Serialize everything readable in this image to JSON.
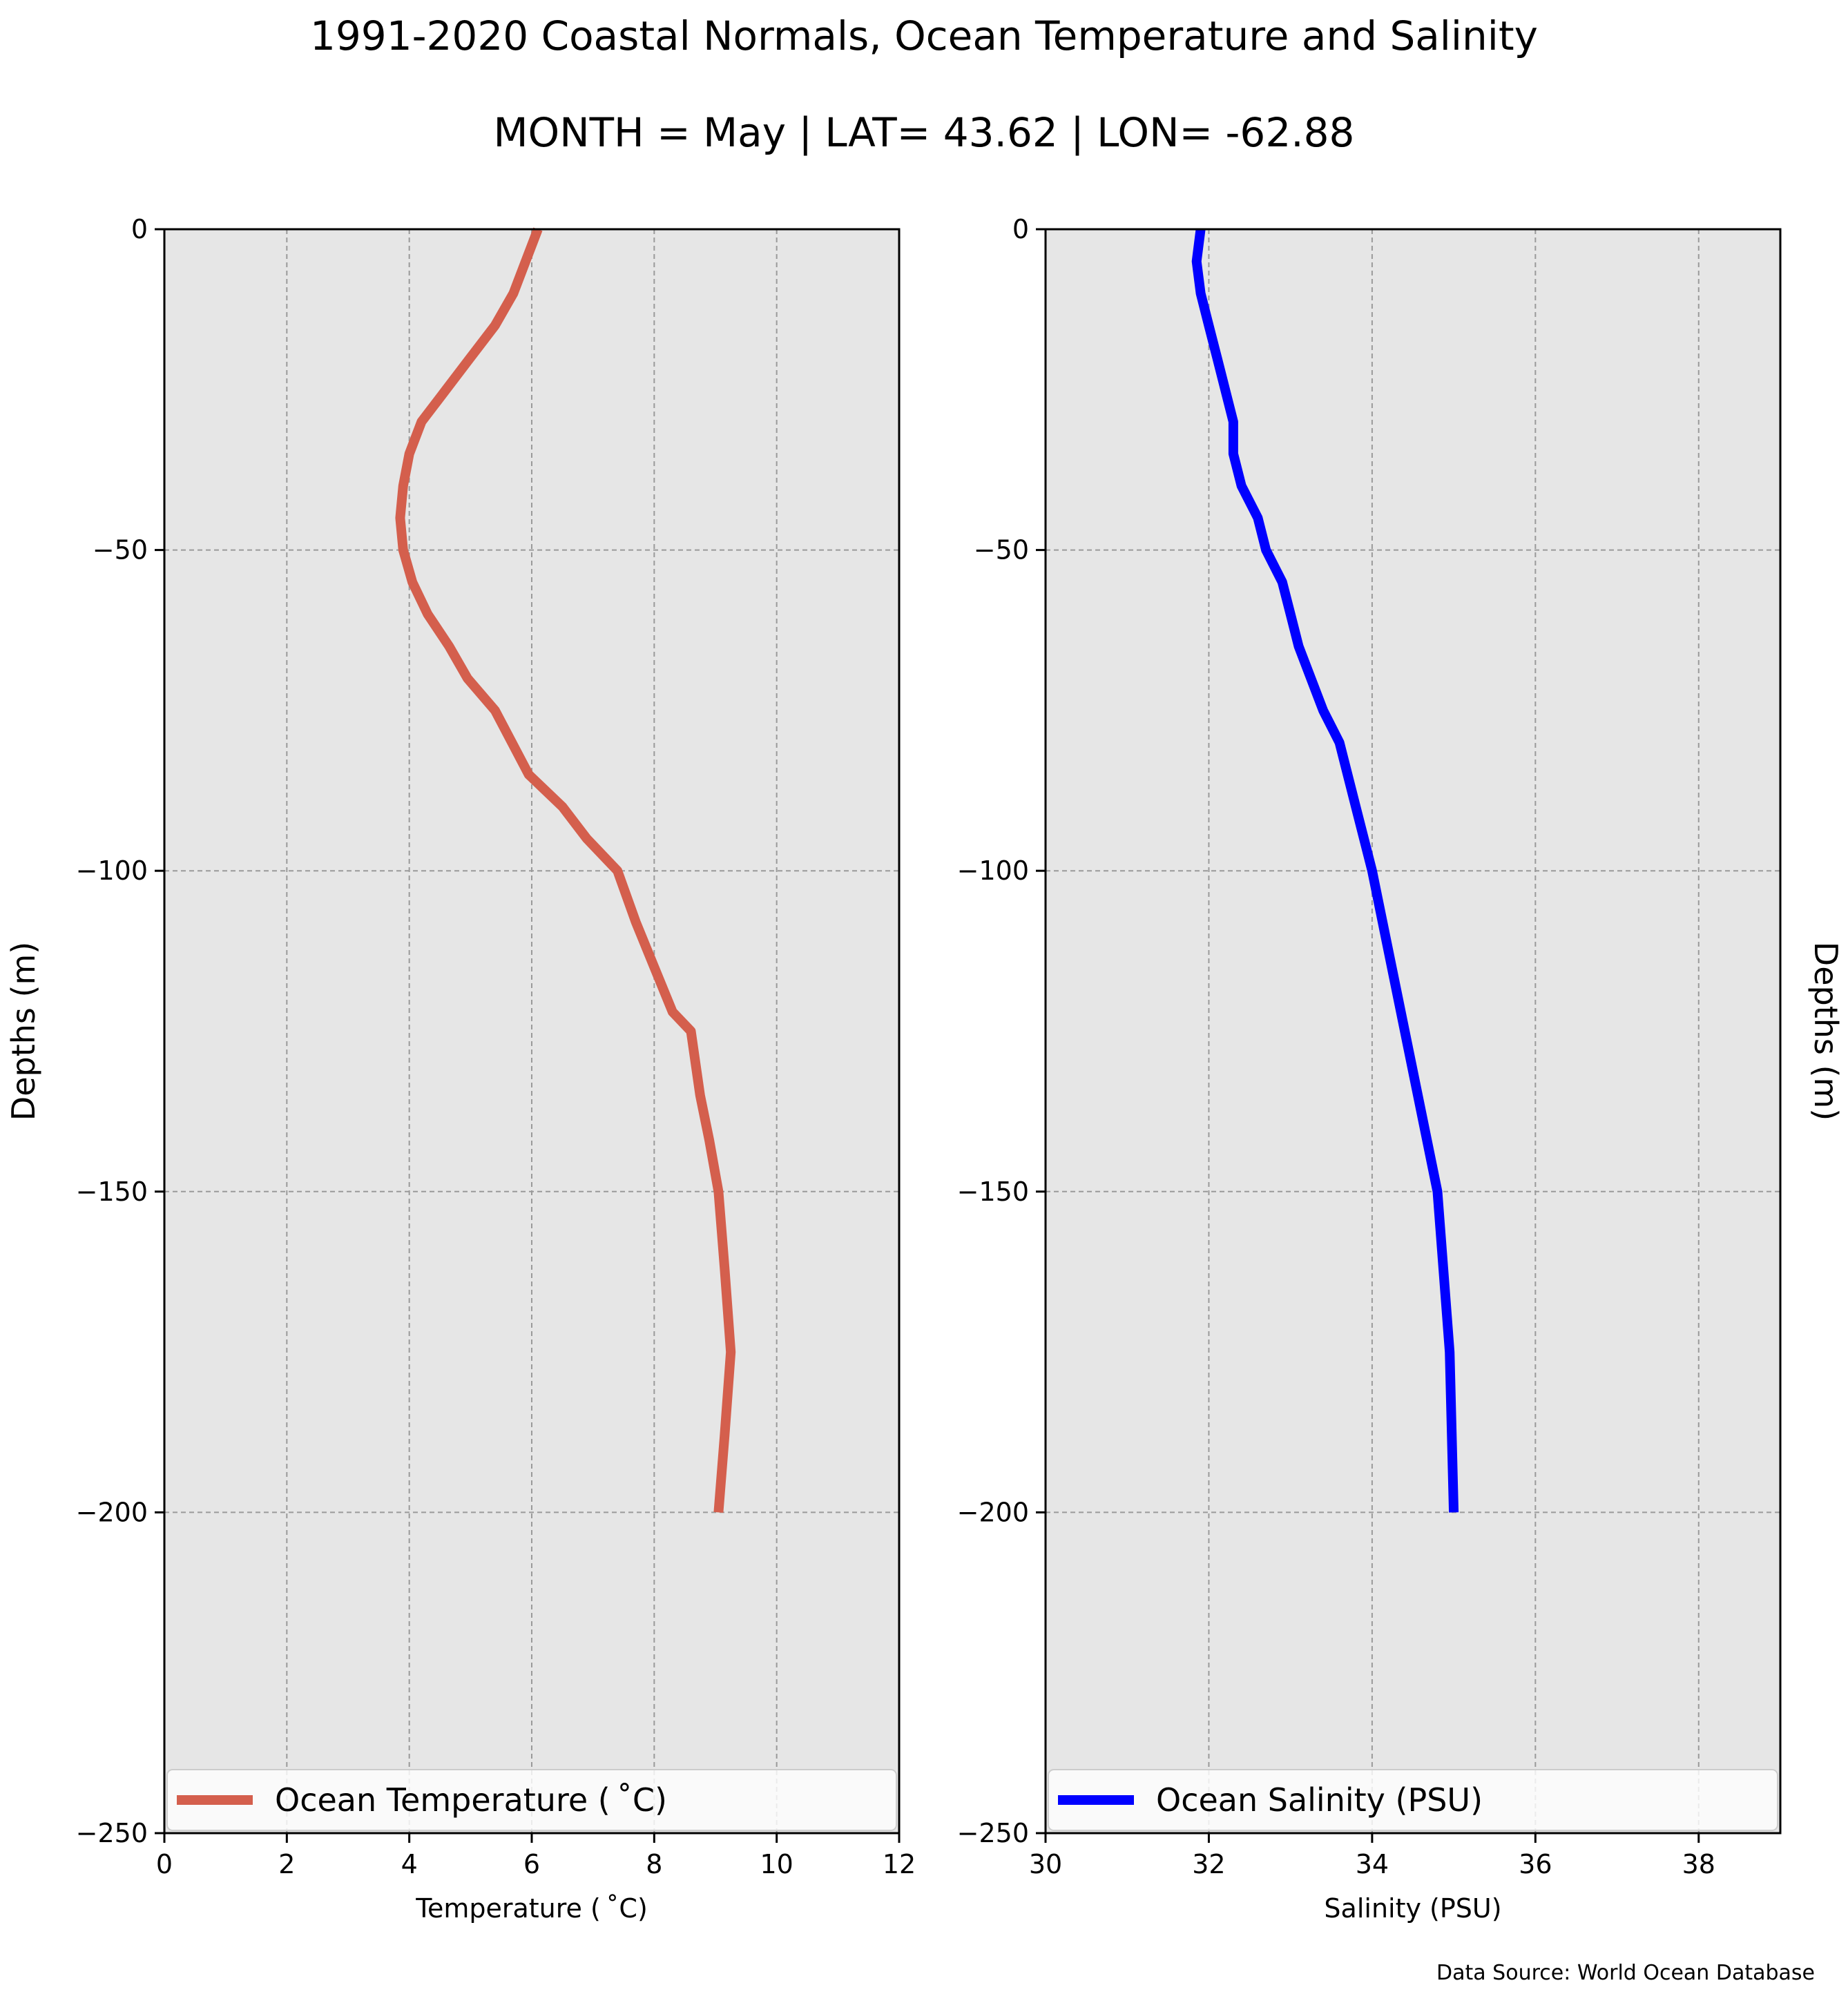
{
  "title": "1991-2020 Coastal Normals, Ocean Temperature and Salinity",
  "subtitle": "MONTH = May | LAT= 43.62 | LON= -62.88",
  "source_note": "Data Source: World Ocean Database",
  "chart_data": [
    {
      "type": "line",
      "xlabel": "Temperature ($^\\circ$C)",
      "xlabel_display": "Temperature ( ˚C)",
      "ylabel": "Depths (m)",
      "xlim": [
        0,
        12
      ],
      "ylim": [
        -250,
        0
      ],
      "xticks": [
        0,
        2,
        4,
        6,
        8,
        10,
        12
      ],
      "yticks": [
        0,
        -50,
        -100,
        -150,
        -200,
        -250
      ],
      "grid": true,
      "legend_position": "lower center",
      "series": [
        {
          "name": "Ocean Temperature ( ˚C)",
          "color": "#d45f4d",
          "x": [
            6.1,
            5.9,
            5.7,
            5.4,
            5.0,
            4.6,
            4.2,
            4.0,
            3.9,
            3.85,
            3.9,
            4.05,
            4.3,
            4.65,
            4.95,
            5.4,
            5.95,
            6.5,
            6.9,
            7.4,
            7.7,
            8.0,
            8.3,
            8.6,
            8.75,
            8.9,
            9.05,
            9.15,
            9.25,
            9.15,
            9.05
          ],
          "y": [
            0,
            -5,
            -10,
            -15,
            -20,
            -25,
            -30,
            -35,
            -40,
            -45,
            -50,
            -55,
            -60,
            -65,
            -70,
            -75,
            -85,
            -90,
            -95,
            -100,
            -108,
            -115,
            -122,
            -125,
            -135,
            -142,
            -150,
            -162,
            -175,
            -188,
            -200
          ]
        }
      ]
    },
    {
      "type": "line",
      "xlabel": "Salinity (PSU)",
      "ylabel": "Depths (m)",
      "xlim": [
        30,
        39
      ],
      "ylim": [
        -250,
        0
      ],
      "xticks": [
        30,
        32,
        34,
        36,
        38
      ],
      "yticks": [
        0,
        -50,
        -100,
        -150,
        -200,
        -250
      ],
      "grid": true,
      "legend_position": "lower center",
      "series": [
        {
          "name": "Ocean Salinity (PSU)",
          "color": "#0000ff",
          "x": [
            31.9,
            31.85,
            31.9,
            32.0,
            32.1,
            32.2,
            32.3,
            32.3,
            32.4,
            32.6,
            32.7,
            32.9,
            33.0,
            33.1,
            33.4,
            33.6,
            33.8,
            34.0,
            34.4,
            34.8,
            34.95,
            35.0
          ],
          "y": [
            0,
            -5,
            -10,
            -15,
            -20,
            -25,
            -30,
            -35,
            -40,
            -45,
            -50,
            -55,
            -60,
            -65,
            -75,
            -80,
            -90,
            -100,
            -125,
            -150,
            -175,
            -200
          ]
        }
      ]
    }
  ]
}
